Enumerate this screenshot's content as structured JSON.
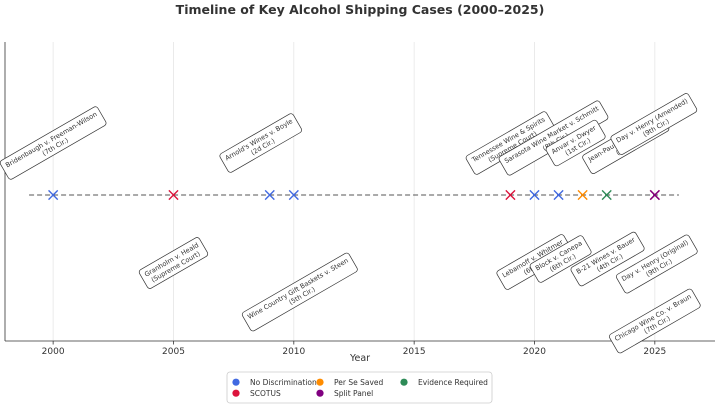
{
  "chart_data": {
    "type": "scatter",
    "title": "Timeline of Key Alcohol Shipping Cases (2000–2025)",
    "xlabel": "Year",
    "ylabel": "",
    "xlim": [
      1998,
      2027.5
    ],
    "xticks": [
      2000,
      2005,
      2010,
      2015,
      2020,
      2025
    ],
    "grid": true,
    "baseline_range": [
      1999,
      2026
    ],
    "colors": {
      "No Discrimination": "#4169e1",
      "Per Se Saved": "#ff8c00",
      "Evidence Required": "#2e8b57",
      "SCOTUS": "#dc143c",
      "Split Panel": "#800080"
    },
    "points": [
      {
        "year": 2000,
        "category": "No Discrimination"
      },
      {
        "year": 2005,
        "category": "SCOTUS"
      },
      {
        "year": 2009,
        "category": "No Discrimination"
      },
      {
        "year": 2010,
        "category": "No Discrimination"
      },
      {
        "year": 2019,
        "category": "SCOTUS"
      },
      {
        "year": 2020,
        "category": "No Discrimination"
      },
      {
        "year": 2021,
        "category": "No Discrimination"
      },
      {
        "year": 2022,
        "category": "Per Se Saved"
      },
      {
        "year": 2023,
        "category": "Evidence Required"
      },
      {
        "year": 2025,
        "category": "SCOTUS"
      },
      {
        "year": 2025,
        "category": "Split Panel"
      }
    ],
    "annotations": [
      {
        "year": 2000,
        "side": "above",
        "lines": [
          "Bridenbaugh v. Freeman-Wilson",
          "(7th Cir.)"
        ]
      },
      {
        "year": 2005,
        "side": "below",
        "lines": [
          "Granholm v. Heald",
          "(Supreme Court)"
        ]
      },
      {
        "year": 2009,
        "side": "above",
        "lines": [
          "Arnold's Wines v. Boyle",
          "(2d Cir.)"
        ]
      },
      {
        "year": 2010,
        "side": "below",
        "lines": [
          "Wine Country Gift Baskets v. Steen",
          "(5th Cir.)"
        ]
      },
      {
        "year": 2019,
        "side": "above",
        "lines": [
          "Tennessee Wine & Spirits",
          "(Supreme Court)"
        ]
      },
      {
        "year": 2020,
        "side": "above",
        "lines": [
          "Sarasota Wine Market v. Schmitt",
          "(8th Cir.)"
        ]
      },
      {
        "year": 2020,
        "side": "below",
        "lines": [
          "Lebamoff v. Whitmer",
          "(6th Cir.)"
        ]
      },
      {
        "year": 2021,
        "side": "below",
        "lines": [
          "B-21 Wines v. Bauer",
          "(4th Cir.)"
        ]
      },
      {
        "year": 2022,
        "side": "above",
        "lines": [
          "Anvar v. Dwyer",
          "(1st Cir.)"
        ]
      },
      {
        "year": 2022,
        "side": "below",
        "lines": [
          "Block v. Canepa",
          "(6th Cir.)"
        ]
      },
      {
        "year": 2024,
        "side": "above",
        "lines": [
          "Jean-Paul Weg v. Dir. N.J.",
          "(3d Cir.)"
        ]
      },
      {
        "year": 2025,
        "side": "above",
        "lines": [
          "Day v. Henry (Amended)",
          "(9th Cir.)"
        ]
      },
      {
        "year": 2025,
        "side": "below",
        "lines": [
          "Day v. Henry (Original)",
          "(9th Cir.)"
        ]
      },
      {
        "year": 2025,
        "side": "below",
        "lines": [
          "Chicago Wine Co. v. Braun",
          "(7th Cir.)"
        ]
      }
    ],
    "legend": {
      "placement": "bottom-center",
      "entries": [
        "No Discrimination",
        "Per Se Saved",
        "Evidence Required",
        "SCOTUS",
        "Split Panel"
      ]
    }
  }
}
